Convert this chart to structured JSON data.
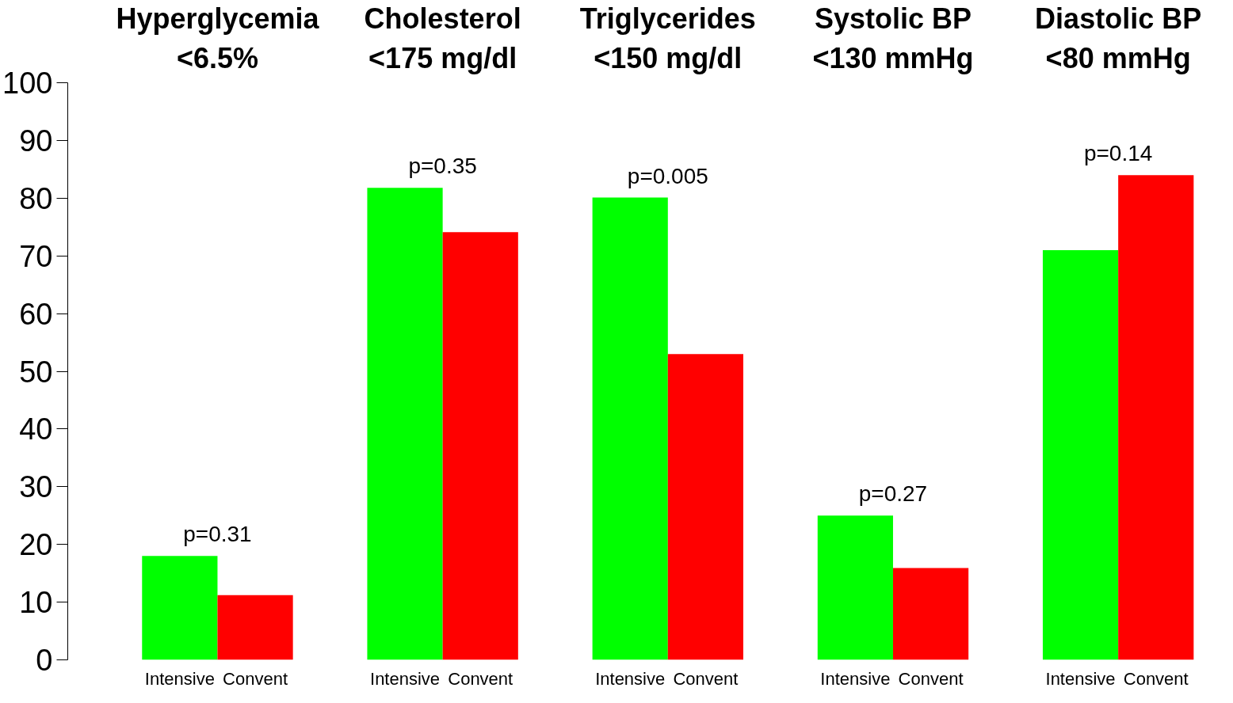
{
  "chart_data": {
    "type": "bar",
    "categories": [
      "Hyperglycemia\n<6.5%",
      "Cholesterol\n<175 mg/dl",
      "Triglycerides\n<150 mg/dl",
      "Systolic BP\n<130 mmHg",
      "Diastolic BP\n<80 mmHg"
    ],
    "series": [
      {
        "name": "Intensive",
        "color": "#00ff00",
        "values": [
          18,
          81.8,
          80.1,
          25,
          71
        ]
      },
      {
        "name": "Convent",
        "color": "#ff0000",
        "values": [
          11.2,
          74.1,
          53,
          15.9,
          84
        ]
      }
    ],
    "ylim": [
      0,
      100
    ],
    "yticks": [
      0,
      10,
      20,
      30,
      40,
      50,
      60,
      70,
      80,
      90,
      100
    ],
    "grid": false,
    "legend": false,
    "annotations": [
      "p=0.31",
      "p=0.35",
      "p=0.005",
      "p=0.27",
      "p=0.14"
    ]
  }
}
